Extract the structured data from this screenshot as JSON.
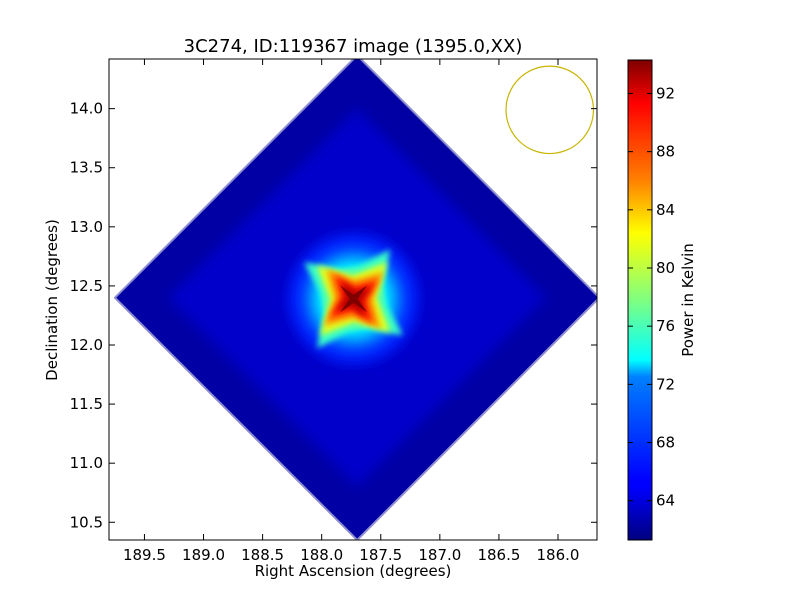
{
  "chart_data": {
    "type": "heatmap",
    "title": "3C274, ID:119367 image (1395.0,XX)",
    "xlabel": "Right Ascension (degrees)",
    "ylabel": "Declination (degrees)",
    "xlim": [
      189.8,
      185.67
    ],
    "ylim": [
      10.35,
      14.42
    ],
    "x_ticks": [
      "189.5",
      "189.0",
      "188.5",
      "188.0",
      "187.5",
      "187.0",
      "186.5",
      "186.0"
    ],
    "x_tick_values": [
      189.5,
      189.0,
      188.5,
      188.0,
      187.5,
      187.0,
      186.5,
      186.0
    ],
    "y_ticks": [
      "10.5",
      "11.0",
      "11.5",
      "12.0",
      "12.5",
      "13.0",
      "13.5",
      "14.0"
    ],
    "y_tick_values": [
      10.5,
      11.0,
      11.5,
      12.0,
      12.5,
      13.0,
      13.5,
      14.0
    ],
    "colormap": "jet",
    "colorbar": {
      "label": "Power in Kelvin",
      "ticks": [
        "64",
        "68",
        "72",
        "76",
        "80",
        "84",
        "88",
        "92"
      ],
      "tick_values": [
        64,
        68,
        72,
        76,
        80,
        84,
        88,
        92
      ],
      "vmin": 61.3,
      "vmax": 94.3
    },
    "image": {
      "footprint": "diamond",
      "center_ra": 187.7,
      "center_dec": 12.4,
      "half_extent_deg": 2.05,
      "background_value": 62.5,
      "peak_value": 94.3,
      "peak_ra": 187.73,
      "peak_dec": 12.39
    },
    "beam": {
      "shape": "circle",
      "ra": 186.07,
      "dec": 13.99,
      "radius_deg": 0.37,
      "color": "#c8b400"
    },
    "grid": false
  }
}
